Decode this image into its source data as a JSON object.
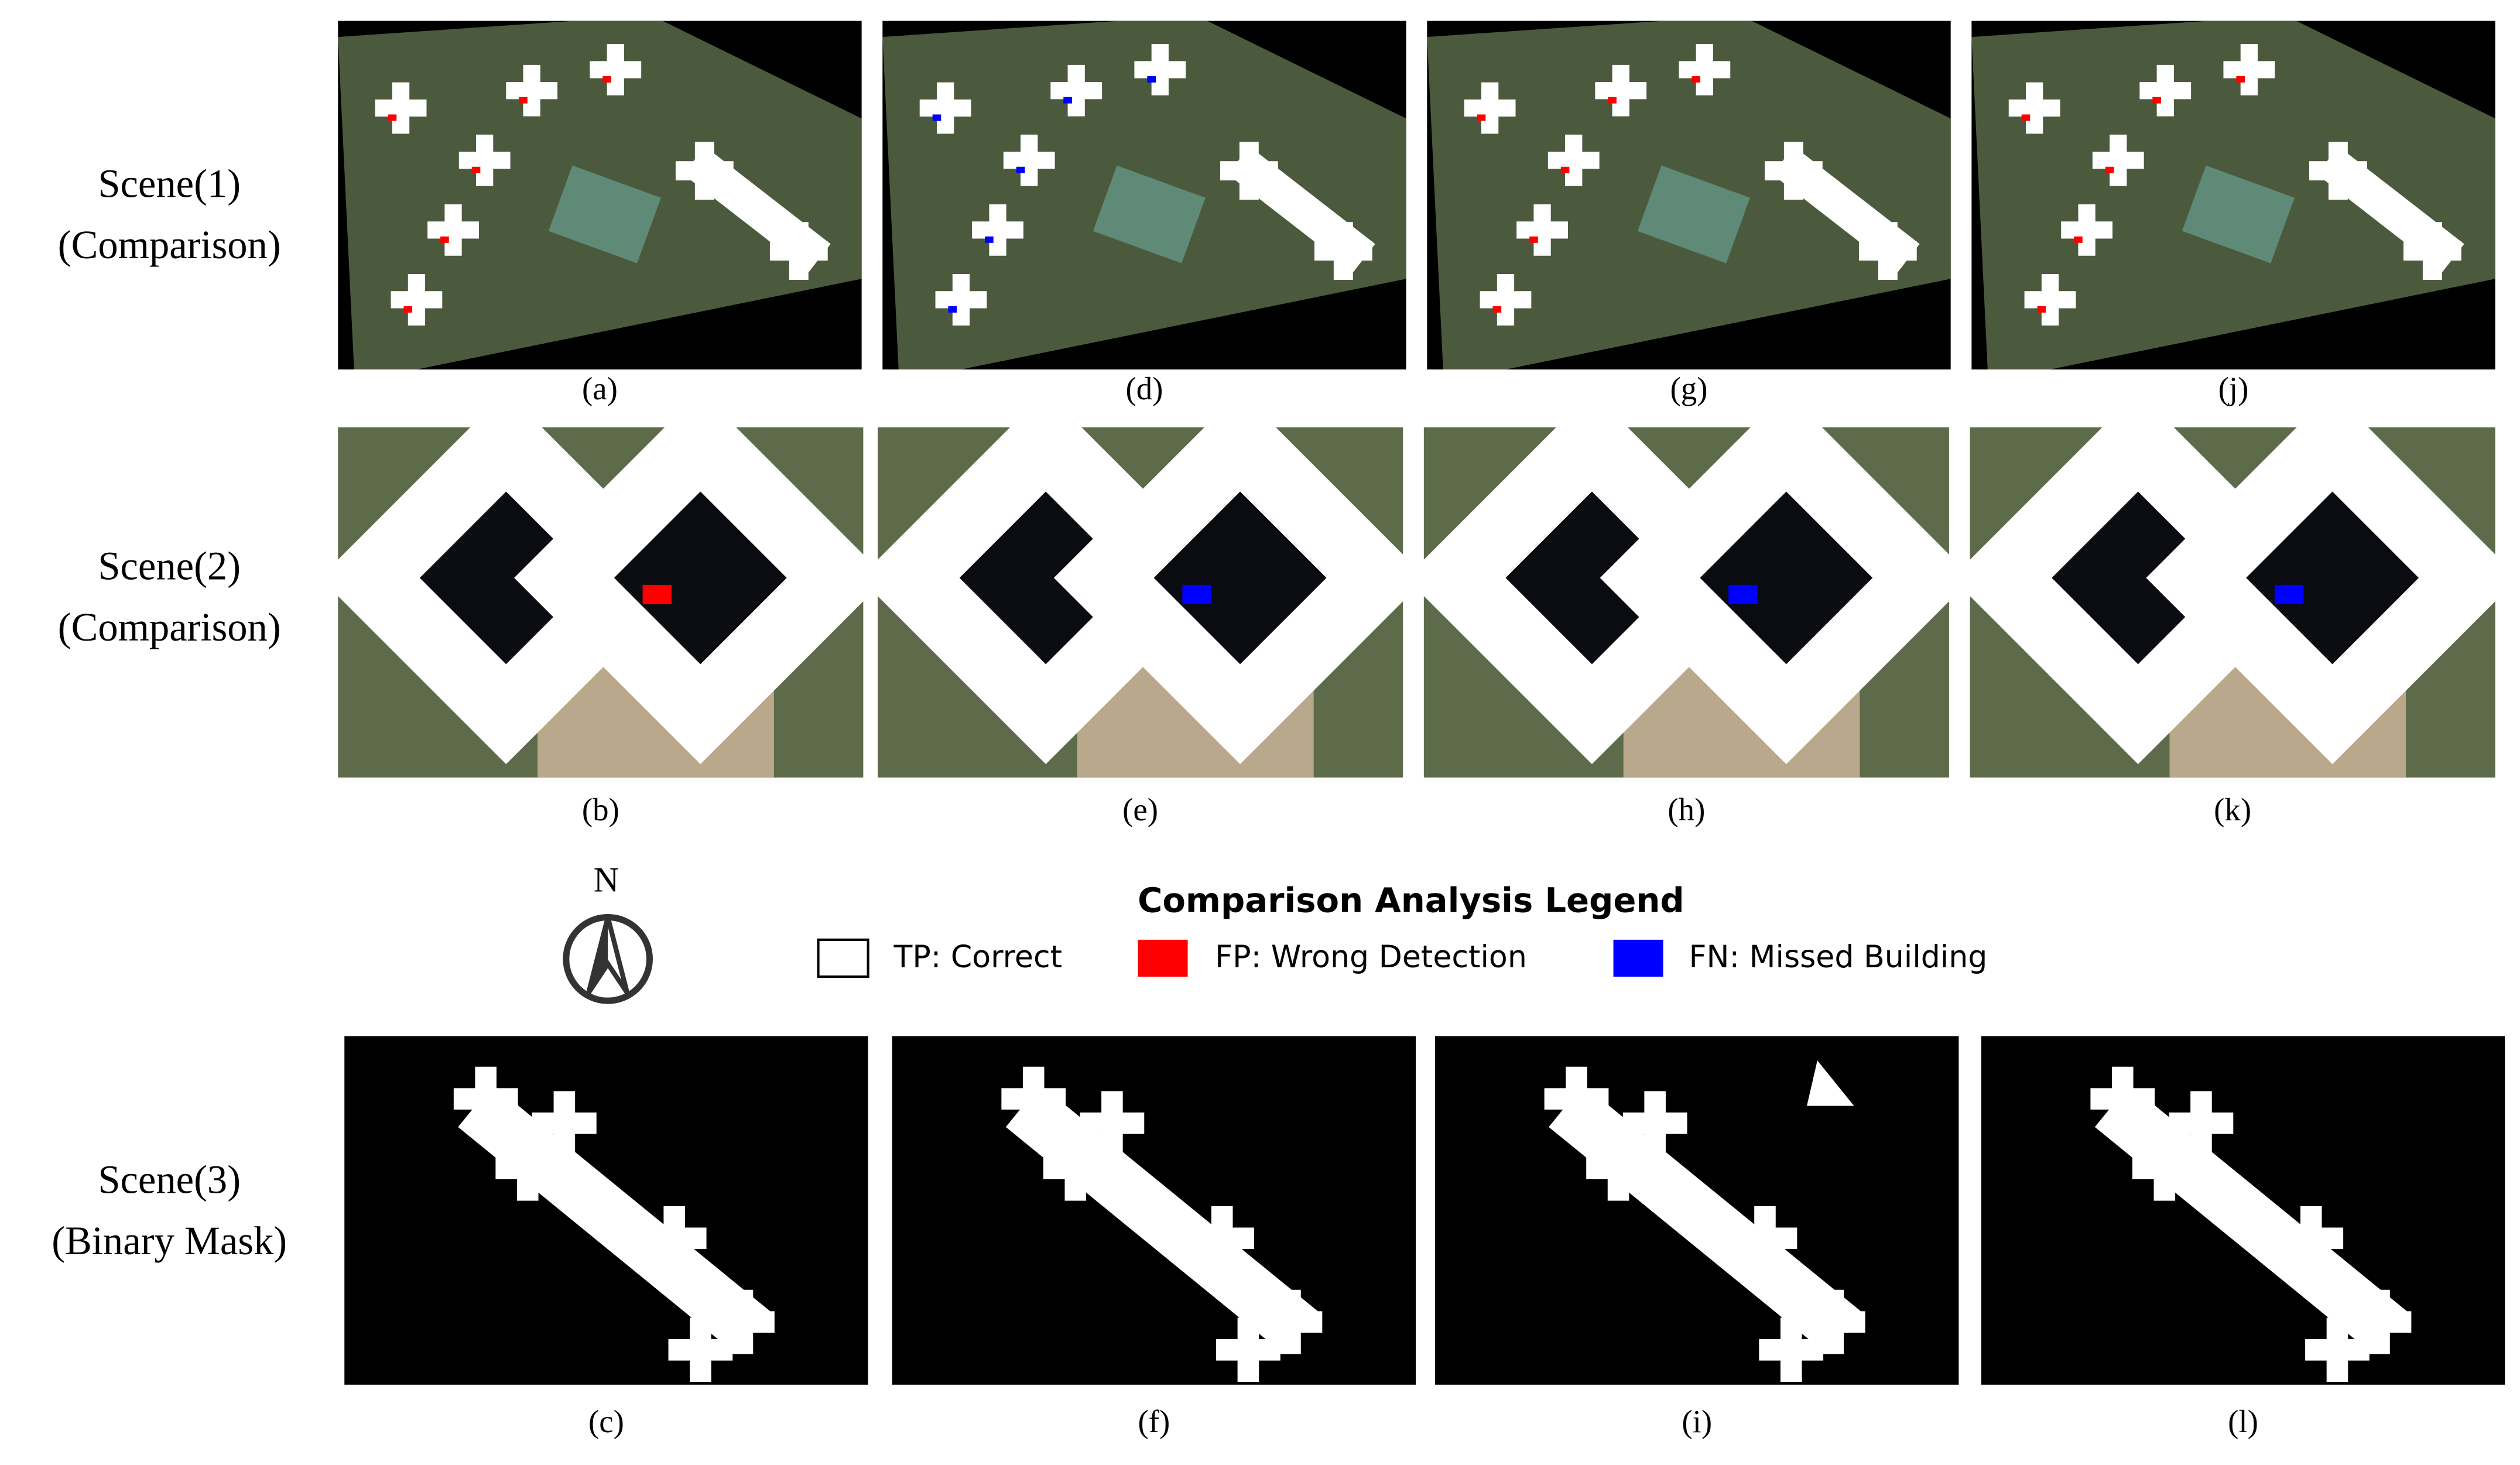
{
  "rows": [
    {
      "label": [
        "Scene(1)",
        "(Comparison)"
      ],
      "captions": [
        "(a)",
        "(d)",
        "(g)",
        "(j)"
      ]
    },
    {
      "label": [
        "Scene(2)",
        "(Comparison)"
      ],
      "captions": [
        "(b)",
        "(e)",
        "(h)",
        "(k)"
      ]
    },
    {
      "label": [
        "Scene(3)",
        "(Binary Mask)"
      ],
      "captions": [
        "(c)",
        "(f)",
        "(i)",
        "(l)"
      ]
    }
  ],
  "north": "N",
  "legend": {
    "title": "Comparison Analysis Legend",
    "items": [
      "TP: Correct",
      "FP: Wrong Detection",
      "FN: Missed Building"
    ]
  }
}
